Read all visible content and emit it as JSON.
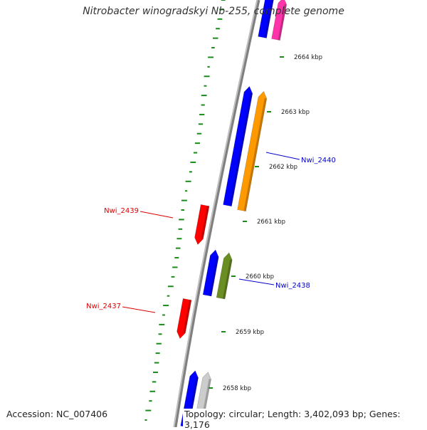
{
  "title": "Nitrobacter winogradskyi Nb-255, complete genome",
  "footer": {
    "accession": "Accession: NC_007406",
    "summary": "Topology: circular; Length: 3,402,093 bp; Genes: 3,176"
  },
  "colors": {
    "backbone": "#808080",
    "gc_ticks": "#1a8a1a",
    "label_red": "#dd0000",
    "label_blue": "#0000cc"
  },
  "scale_ticks": [
    "2658 kbp",
    "2659 kbp",
    "2660 kbp",
    "2661 kbp",
    "2662 kbp",
    "2663 kbp",
    "2664 kbp"
  ],
  "genes": [
    {
      "label": "",
      "color": "#0000ff",
      "strand": "+"
    },
    {
      "label": "",
      "color": "#ff33aa",
      "strand": "+"
    },
    {
      "label": "",
      "color": "#0000ff",
      "strand": "+"
    },
    {
      "label": "Nwi_2440",
      "color": "#ff9900",
      "strand": "+"
    },
    {
      "label": "Nwi_2439",
      "color": "#ff0000",
      "strand": "-"
    },
    {
      "label": "",
      "color": "#0000ff",
      "strand": "+"
    },
    {
      "label": "Nwi_2438",
      "color": "#6b8e23",
      "strand": "+"
    },
    {
      "label": "Nwi_2437",
      "color": "#ff0000",
      "strand": "-"
    },
    {
      "label": "",
      "color": "#0000ff",
      "strand": "+"
    },
    {
      "label": "",
      "color": "#cccccc",
      "strand": "+"
    }
  ]
}
